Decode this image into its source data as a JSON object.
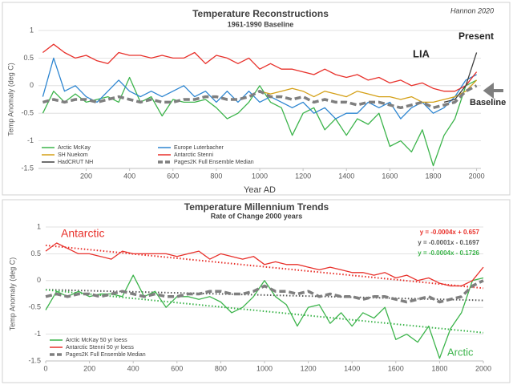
{
  "chart_data": [
    {
      "type": "line",
      "title": "Temperature Reconstructions",
      "subtitle": "1961-1990 Baseline",
      "y_label": "Temp Anomaly (deg C)",
      "x_label": "Year AD",
      "annotations": [
        {
          "text": "Hannon 2020",
          "color": "#404040"
        },
        {
          "text": "LIA",
          "color": "#262626"
        },
        {
          "text": "Present",
          "color": "#262626"
        },
        {
          "text": "Baseline",
          "color": "#262626"
        }
      ],
      "x": [
        0,
        50,
        100,
        150,
        200,
        250,
        300,
        350,
        400,
        450,
        500,
        550,
        600,
        650,
        700,
        750,
        800,
        850,
        900,
        950,
        1000,
        1050,
        1100,
        1150,
        1200,
        1250,
        1300,
        1350,
        1400,
        1450,
        1500,
        1550,
        1600,
        1650,
        1700,
        1750,
        1800,
        1850,
        1900,
        1950,
        2000
      ],
      "xlim": [
        -20,
        2020
      ],
      "xticks": [
        200,
        400,
        600,
        800,
        1000,
        1200,
        1400,
        1600,
        1800,
        2000
      ],
      "ylim": [
        -1.5,
        1
      ],
      "yticks": [
        -1.5,
        -1,
        -0.5,
        0,
        0.5,
        1
      ],
      "grid": true,
      "series": [
        {
          "name": "Arctic McKay",
          "color": "#3cb44b",
          "dashed": false,
          "values": [
            -0.5,
            -0.1,
            -0.3,
            -0.15,
            -0.3,
            -0.25,
            -0.2,
            -0.3,
            0.15,
            -0.3,
            -0.2,
            -0.55,
            -0.25,
            -0.3,
            -0.3,
            -0.25,
            -0.4,
            -0.6,
            -0.5,
            -0.3,
            0.0,
            -0.3,
            -0.4,
            -0.9,
            -0.5,
            -0.4,
            -0.8,
            -0.6,
            -0.9,
            -0.6,
            -0.7,
            -0.5,
            -1.1,
            -1.0,
            -1.2,
            -0.8,
            -1.45,
            -0.9,
            -0.6,
            0.0,
            0.1
          ]
        },
        {
          "name": "Europe Luterbacher",
          "color": "#2e86d1",
          "dashed": false,
          "values": [
            -0.2,
            0.5,
            -0.1,
            0.0,
            -0.2,
            -0.3,
            -0.1,
            0.1,
            -0.1,
            -0.2,
            -0.1,
            -0.2,
            -0.1,
            0.0,
            -0.2,
            -0.1,
            -0.3,
            -0.1,
            -0.3,
            -0.1,
            -0.3,
            -0.2,
            -0.3,
            -0.4,
            -0.3,
            -0.5,
            -0.4,
            -0.6,
            -0.5,
            -0.5,
            -0.3,
            -0.4,
            -0.3,
            -0.6,
            -0.4,
            -0.3,
            -0.5,
            -0.4,
            -0.2,
            0.1,
            0.2
          ]
        },
        {
          "name": "SH Nuekom",
          "color": "#d4a017",
          "dashed": false,
          "values": [
            null,
            null,
            null,
            null,
            null,
            null,
            null,
            null,
            null,
            null,
            null,
            null,
            null,
            null,
            null,
            null,
            null,
            null,
            null,
            null,
            -0.1,
            -0.15,
            -0.1,
            -0.05,
            -0.1,
            -0.2,
            -0.1,
            -0.15,
            -0.2,
            -0.1,
            -0.15,
            -0.2,
            -0.2,
            -0.25,
            -0.2,
            -0.3,
            -0.3,
            -0.25,
            -0.2,
            -0.1,
            0.1
          ]
        },
        {
          "name": "Antarctic Stenni",
          "color": "#e8302a",
          "dashed": false,
          "values": [
            0.6,
            0.75,
            0.6,
            0.5,
            0.55,
            0.45,
            0.4,
            0.6,
            0.55,
            0.55,
            0.5,
            0.55,
            0.5,
            0.5,
            0.6,
            0.4,
            0.55,
            0.5,
            0.4,
            0.5,
            0.3,
            0.4,
            0.3,
            0.3,
            0.25,
            0.2,
            0.3,
            0.2,
            0.15,
            0.2,
            0.1,
            0.15,
            0.05,
            0.1,
            0.0,
            0.05,
            -0.05,
            -0.1,
            -0.1,
            0.0,
            0.25
          ]
        },
        {
          "name": "HadCRUT NH",
          "color": "#404040",
          "dashed": false,
          "values": [
            null,
            null,
            null,
            null,
            null,
            null,
            null,
            null,
            null,
            null,
            null,
            null,
            null,
            null,
            null,
            null,
            null,
            null,
            null,
            null,
            null,
            null,
            null,
            null,
            null,
            null,
            null,
            null,
            null,
            null,
            null,
            null,
            null,
            null,
            null,
            null,
            null,
            -0.3,
            -0.25,
            0.0,
            0.6
          ]
        },
        {
          "name": "Pages2K Full Ensemble Median",
          "color": "#7f7f7f",
          "dashed": true,
          "values": [
            -0.3,
            -0.25,
            -0.3,
            -0.25,
            -0.25,
            -0.3,
            -0.25,
            -0.2,
            -0.25,
            -0.3,
            -0.25,
            -0.3,
            -0.3,
            -0.25,
            -0.25,
            -0.2,
            -0.2,
            -0.25,
            -0.25,
            -0.2,
            -0.1,
            -0.2,
            -0.2,
            -0.25,
            -0.2,
            -0.3,
            -0.25,
            -0.3,
            -0.3,
            -0.35,
            -0.3,
            -0.3,
            -0.35,
            -0.4,
            -0.35,
            -0.3,
            -0.4,
            -0.35,
            -0.3,
            -0.1,
            0.0
          ]
        }
      ]
    },
    {
      "type": "line",
      "title": "Temperature Millennium Trends",
      "subtitle": "Rate of Change 2000 years",
      "y_label": "Temp Anomaly (deg C)",
      "annotations": [
        {
          "text": "Antarctic",
          "color": "#e8302a"
        },
        {
          "text": "Arctic",
          "color": "#3cb44b"
        }
      ],
      "x": [
        0,
        50,
        100,
        150,
        200,
        250,
        300,
        350,
        400,
        450,
        500,
        550,
        600,
        650,
        700,
        750,
        800,
        850,
        900,
        950,
        1000,
        1050,
        1100,
        1150,
        1200,
        1250,
        1300,
        1350,
        1400,
        1450,
        1500,
        1550,
        1600,
        1650,
        1700,
        1750,
        1800,
        1850,
        1900,
        1950,
        2000
      ],
      "xlim": [
        0,
        2000
      ],
      "xticks": [
        0,
        200,
        400,
        600,
        800,
        1000,
        1200,
        1400,
        1600,
        1800,
        2000
      ],
      "ylim": [
        -1.5,
        1
      ],
      "yticks": [
        -1.5,
        -1,
        -0.5,
        0,
        0.5,
        1
      ],
      "grid": true,
      "series": [
        {
          "name": "Arctic McKay 50 yr loess",
          "color": "#3cb44b",
          "dashed": false,
          "values": [
            -0.55,
            -0.2,
            -0.3,
            -0.2,
            -0.3,
            -0.25,
            -0.25,
            -0.3,
            0.1,
            -0.3,
            -0.2,
            -0.5,
            -0.3,
            -0.3,
            -0.35,
            -0.3,
            -0.4,
            -0.6,
            -0.5,
            -0.3,
            0.0,
            -0.3,
            -0.45,
            -0.85,
            -0.5,
            -0.45,
            -0.8,
            -0.6,
            -0.85,
            -0.6,
            -0.7,
            -0.5,
            -1.1,
            -1.0,
            -1.15,
            -0.85,
            -1.45,
            -0.9,
            -0.6,
            0.0,
            0.05
          ]
        },
        {
          "name": "Antarctic Stenni 50 yr loess",
          "color": "#e8302a",
          "dashed": false,
          "values": [
            0.55,
            0.7,
            0.6,
            0.5,
            0.5,
            0.45,
            0.4,
            0.55,
            0.5,
            0.5,
            0.5,
            0.5,
            0.45,
            0.5,
            0.55,
            0.4,
            0.5,
            0.45,
            0.4,
            0.45,
            0.3,
            0.35,
            0.3,
            0.3,
            0.25,
            0.2,
            0.25,
            0.2,
            0.15,
            0.15,
            0.1,
            0.15,
            0.05,
            0.1,
            0.0,
            0.05,
            -0.05,
            -0.1,
            -0.1,
            0.0,
            0.25
          ]
        },
        {
          "name": "Pages2K Full Ensemble Median",
          "color": "#7f7f7f",
          "dashed": true,
          "values": [
            -0.3,
            -0.25,
            -0.3,
            -0.25,
            -0.25,
            -0.3,
            -0.25,
            -0.2,
            -0.25,
            -0.3,
            -0.25,
            -0.3,
            -0.3,
            -0.25,
            -0.25,
            -0.2,
            -0.2,
            -0.25,
            -0.25,
            -0.2,
            -0.1,
            -0.2,
            -0.2,
            -0.25,
            -0.2,
            -0.3,
            -0.25,
            -0.3,
            -0.3,
            -0.35,
            -0.3,
            -0.3,
            -0.35,
            -0.4,
            -0.35,
            -0.3,
            -0.4,
            -0.35,
            -0.3,
            -0.1,
            0.0
          ]
        }
      ],
      "trendlines": [
        {
          "label": "y = -0.0004x + 0.657",
          "slope": -0.0004,
          "intercept": 0.657,
          "color": "#e8302a"
        },
        {
          "label": "y = -0.0001x - 0.1697",
          "slope": -0.0001,
          "intercept": -0.1697,
          "color": "#595959"
        },
        {
          "label": "y = -0.0004x - 0.1726",
          "slope": -0.0004,
          "intercept": -0.1726,
          "color": "#3cb44b"
        }
      ]
    }
  ]
}
